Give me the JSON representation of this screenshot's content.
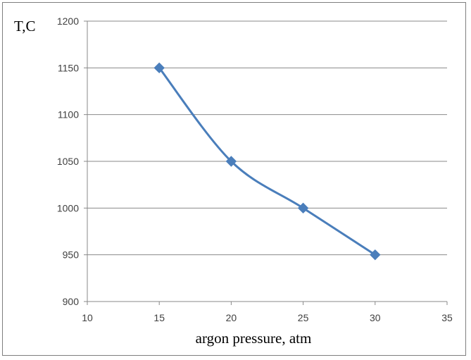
{
  "chart_data": {
    "type": "line",
    "title": "",
    "xlabel": "argon pressure, atm",
    "ylabel": "T,C",
    "xlim": [
      10,
      35
    ],
    "ylim": [
      900,
      1200
    ],
    "xticks": [
      10,
      15,
      20,
      25,
      30,
      35
    ],
    "yticks": [
      900,
      950,
      1000,
      1050,
      1100,
      1150,
      1200
    ],
    "grid": "horizontal",
    "legend": "none",
    "series": [
      {
        "x": [
          15,
          20,
          25,
          30
        ],
        "y": [
          1150,
          1050,
          1000,
          950
        ],
        "color": "#4a7ebb",
        "marker": "diamond",
        "smooth": true
      }
    ]
  }
}
